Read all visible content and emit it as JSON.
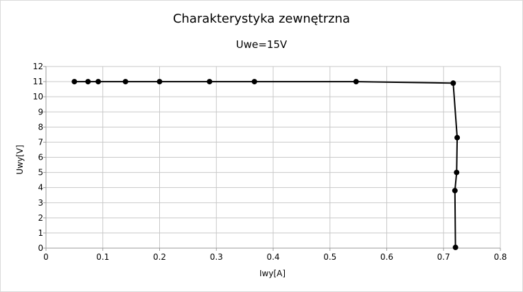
{
  "chart_data": {
    "type": "scatter",
    "title": "Charakterystyka zewnętrzna",
    "subtitle": "Uwe=15V",
    "xlabel": "Iwy[A]",
    "ylabel": "Uwy[V]",
    "xlim": [
      0,
      0.8
    ],
    "ylim": [
      0,
      12
    ],
    "x_ticks": [
      "0",
      "0.1",
      "0.2",
      "0.3",
      "0.4",
      "0.5",
      "0.6",
      "0.7",
      "0.8"
    ],
    "y_ticks": [
      "0",
      "1",
      "2",
      "3",
      "4",
      "5",
      "6",
      "7",
      "8",
      "9",
      "10",
      "11",
      "12"
    ],
    "grid": true,
    "legend": "none",
    "series": [
      {
        "line_color": "#000000",
        "marker": "circle",
        "points": [
          {
            "x": 0.05,
            "y": 11.0
          },
          {
            "x": 0.074,
            "y": 11.0
          },
          {
            "x": 0.092,
            "y": 11.0
          },
          {
            "x": 0.14,
            "y": 11.0
          },
          {
            "x": 0.2,
            "y": 11.0
          },
          {
            "x": 0.288,
            "y": 11.0
          },
          {
            "x": 0.367,
            "y": 11.0
          },
          {
            "x": 0.546,
            "y": 11.0
          },
          {
            "x": 0.717,
            "y": 10.9
          },
          {
            "x": 0.724,
            "y": 7.3
          },
          {
            "x": 0.723,
            "y": 5.0
          },
          {
            "x": 0.72,
            "y": 3.8
          },
          {
            "x": 0.721,
            "y": 0.05
          }
        ]
      }
    ]
  }
}
